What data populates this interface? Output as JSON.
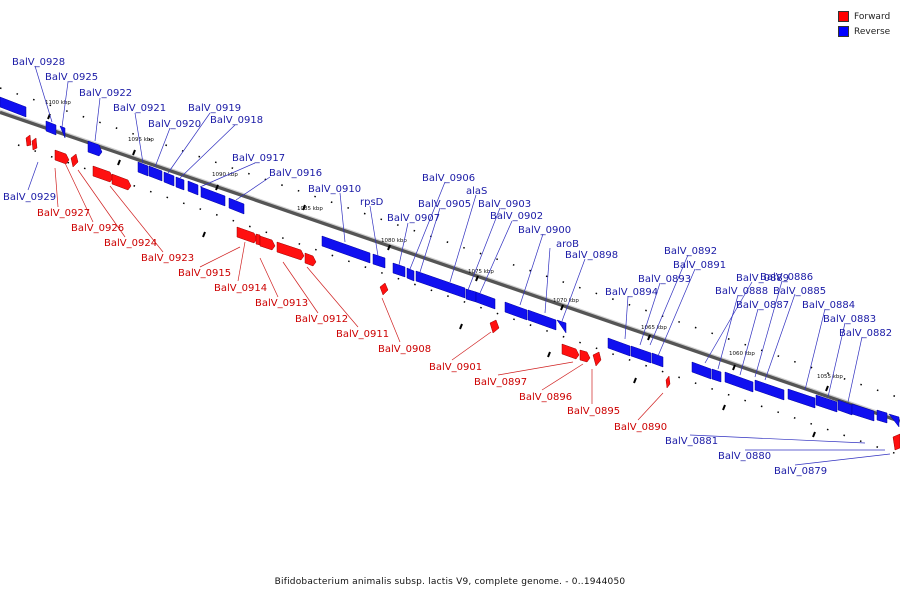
{
  "colors": {
    "forward": "#ff0000",
    "reverse": "#0000ff",
    "forward_label": "#cc0000",
    "reverse_label": "#1a1aa6",
    "backbone": "#9a9a9a"
  },
  "legend": [
    {
      "label": "Forward",
      "color": "#ff0000"
    },
    {
      "label": "Reverse",
      "color": "#0000ff"
    }
  ],
  "caption": "Bifidobacterium animalis subsp. lactis V9, complete genome. - 0..1944050",
  "ticks": [
    "1100 kbp",
    "1095 kbp",
    "1090 kbp",
    "1085 kbp",
    "1080 kbp",
    "1075 kbp",
    "1070 kbp",
    "1065 kbp",
    "1060 kbp",
    "1055 kbp"
  ],
  "reverse_labels": [
    "BalV_0928",
    "BalV_0925",
    "BalV_0922",
    "BalV_0921",
    "BalV_0920",
    "BalV_0919",
    "BalV_0918",
    "BalV_0917",
    "BalV_0916",
    "BalV_0929",
    "BalV_0910",
    "rpsD",
    "BalV_0907",
    "BalV_0906",
    "BalV_0905",
    "alaS",
    "BalV_0903",
    "BalV_0902",
    "BalV_0900",
    "aroB",
    "BalV_0898",
    "BalV_0892",
    "BalV_0891",
    "BalV_0893",
    "BalV_0894",
    "BalV_0889",
    "BalV_0886",
    "BalV_0888",
    "BalV_0885",
    "BalV_0887",
    "BalV_0884",
    "BalV_0883",
    "BalV_0882",
    "BalV_0881",
    "BalV_0880",
    "BalV_0879"
  ],
  "forward_labels": [
    "BalV_0927",
    "BalV_0926",
    "BalV_0924",
    "BalV_0923",
    "BalV_0915",
    "BalV_0914",
    "BalV_0913",
    "BalV_0912",
    "BalV_0911",
    "BalV_0908",
    "BalV_0901",
    "BalV_0897",
    "BalV_0896",
    "BalV_0895",
    "BalV_0890"
  ]
}
